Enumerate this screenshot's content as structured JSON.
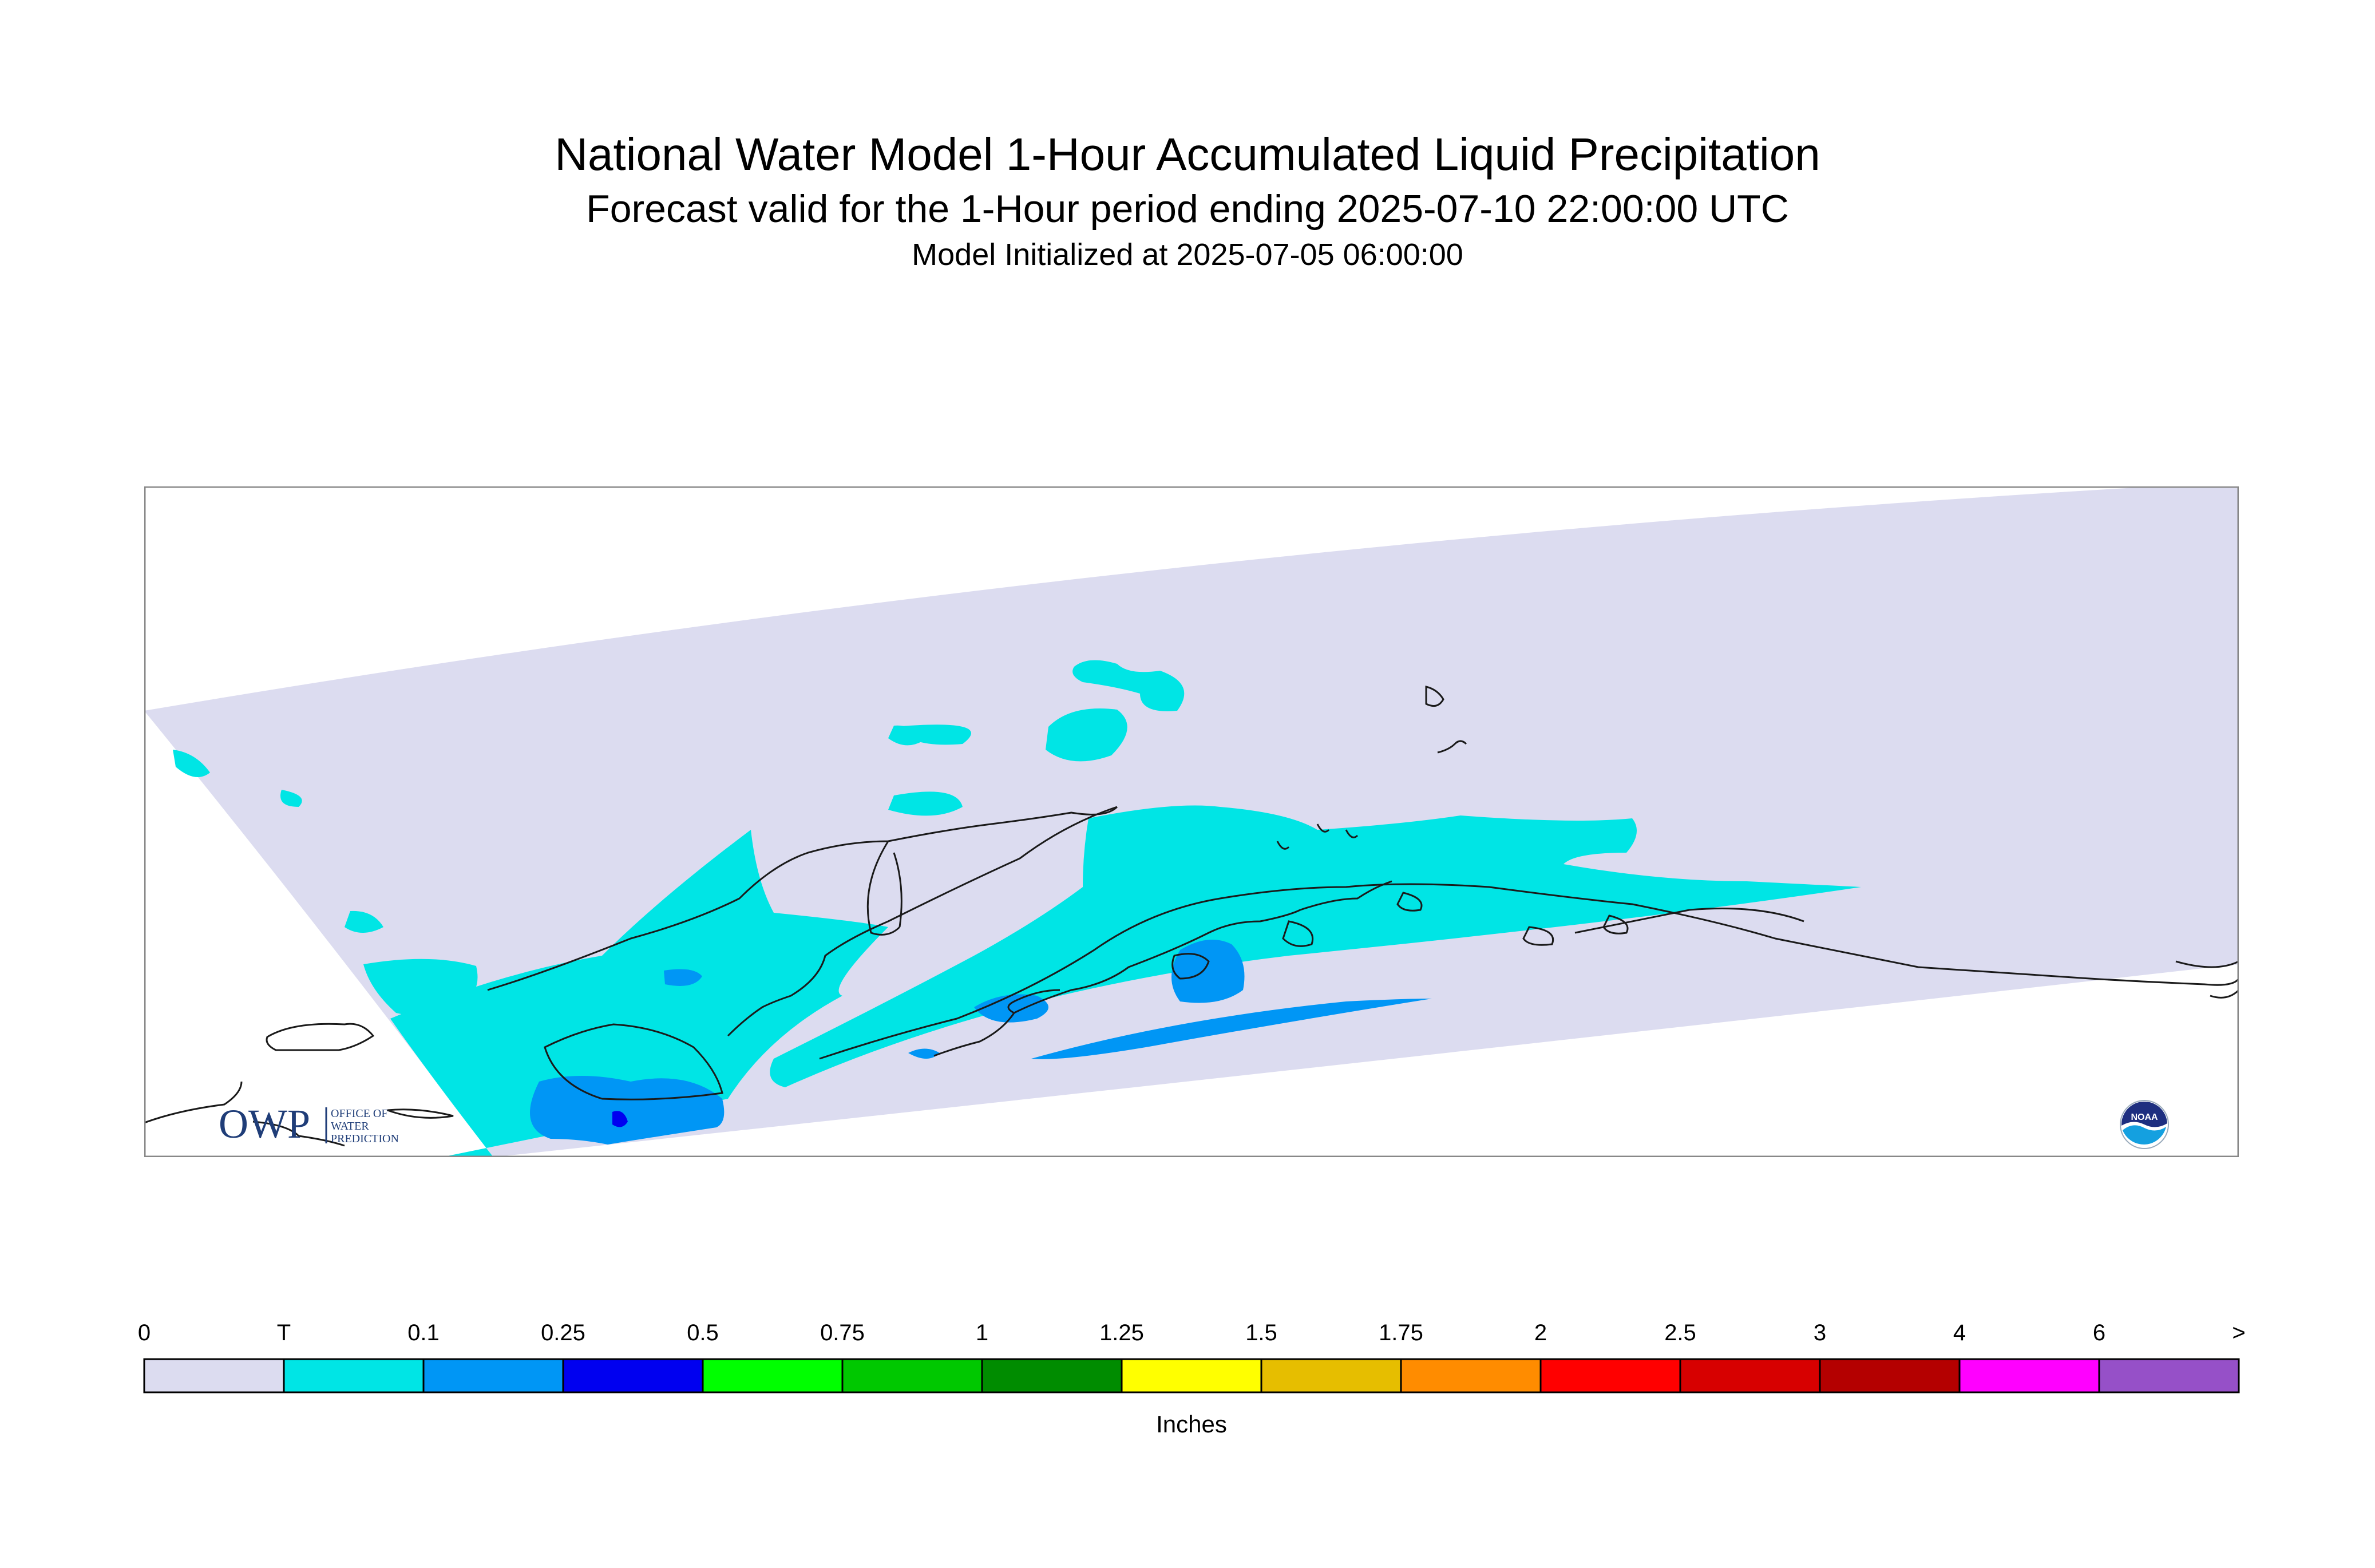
{
  "title": "National Water Model 1-Hour Accumulated Liquid Precipitation",
  "subtitle": "Forecast valid for the 1-Hour period ending 2025-07-10 22:00:00 UTC",
  "init_line": "Model Initialized at 2025-07-05 06:00:00",
  "logos": {
    "owp_text": "OWP",
    "owp_line1": "OFFICE OF",
    "owp_line2": "WATER",
    "owp_line3": "PREDICTION",
    "noaa_text": "NOAA"
  },
  "legend": {
    "unit_label": "Inches",
    "tick_labels": [
      "0",
      "T",
      "0.1",
      "0.25",
      "0.5",
      "0.75",
      "1",
      "1.25",
      "1.5",
      "1.75",
      "2",
      "2.5",
      "3",
      "4",
      "6",
      ">"
    ],
    "colors": [
      "#dcdcf0",
      "#00e5e5",
      "#0096f5",
      "#0000f0",
      "#00ff00",
      "#00c800",
      "#008c00",
      "#ffff00",
      "#e6be00",
      "#ff8c00",
      "#ff0000",
      "#d70000",
      "#b40000",
      "#ff00ff",
      "#9650c8"
    ]
  },
  "colors": {
    "domain_fill": "#dcdcf0",
    "trace": "#00e5e5",
    "light": "#0096f5",
    "moderate": "#0000f0",
    "coastline": "#1a1a1a",
    "frame": "#888888"
  }
}
